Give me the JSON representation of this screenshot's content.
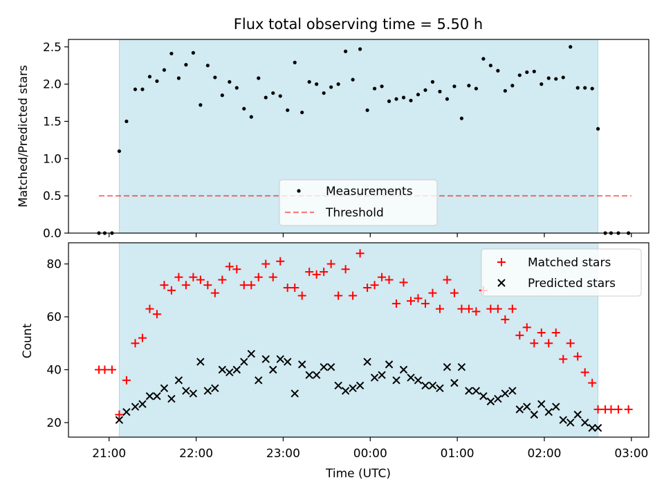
{
  "title": "Flux total observing time = 5.50 h",
  "colors": {
    "band": "#add8e6",
    "threshold": "#ff0000",
    "matched": "#ff0000",
    "predicted": "#000000",
    "measurement": "#000000"
  },
  "chart_data": [
    {
      "type": "scatter",
      "panel": "top",
      "ylabel": "Matched/Predicted stars",
      "ylim": [
        0,
        2.6
      ],
      "yticks": [
        0.0,
        0.5,
        1.0,
        1.5,
        2.0,
        2.5
      ],
      "ytick_labels": [
        "0.0",
        "0.5",
        "1.0",
        "1.5",
        "2.0",
        "2.5"
      ],
      "threshold": {
        "value": 0.5,
        "x_start": "20:53",
        "x_end": "03:00"
      },
      "observing_window": {
        "start": "21:07",
        "end": "02:37"
      },
      "legend": {
        "position": "lower-center",
        "entries": [
          "Measurements",
          "Threshold"
        ]
      },
      "series": [
        {
          "name": "Measurements",
          "points": [
            [
              "20:53",
              0.0
            ],
            [
              "20:57",
              0.0
            ],
            [
              "21:02",
              0.0
            ],
            [
              "21:07",
              1.1
            ],
            [
              "21:12",
              1.5
            ],
            [
              "21:18",
              1.93
            ],
            [
              "21:23",
              1.93
            ],
            [
              "21:28",
              2.1
            ],
            [
              "21:33",
              2.04
            ],
            [
              "21:38",
              2.19
            ],
            [
              "21:43",
              2.41
            ],
            [
              "21:48",
              2.08
            ],
            [
              "21:53",
              2.26
            ],
            [
              "21:58",
              2.42
            ],
            [
              "22:03",
              1.72
            ],
            [
              "22:08",
              2.25
            ],
            [
              "22:13",
              2.09
            ],
            [
              "22:18",
              1.85
            ],
            [
              "22:23",
              2.03
            ],
            [
              "22:28",
              1.95
            ],
            [
              "22:33",
              1.67
            ],
            [
              "22:38",
              1.56
            ],
            [
              "22:43",
              2.08
            ],
            [
              "22:48",
              1.82
            ],
            [
              "22:53",
              1.88
            ],
            [
              "22:58",
              1.84
            ],
            [
              "23:03",
              1.65
            ],
            [
              "23:08",
              2.29
            ],
            [
              "23:13",
              1.62
            ],
            [
              "23:18",
              2.03
            ],
            [
              "23:23",
              2.0
            ],
            [
              "23:28",
              1.88
            ],
            [
              "23:33",
              1.96
            ],
            [
              "23:38",
              2.0
            ],
            [
              "23:43",
              2.44
            ],
            [
              "23:48",
              2.06
            ],
            [
              "23:53",
              2.47
            ],
            [
              "23:58",
              1.65
            ],
            [
              "00:03",
              1.94
            ],
            [
              "00:08",
              1.97
            ],
            [
              "00:13",
              1.77
            ],
            [
              "00:18",
              1.8
            ],
            [
              "00:23",
              1.82
            ],
            [
              "00:28",
              1.78
            ],
            [
              "00:33",
              1.86
            ],
            [
              "00:38",
              1.92
            ],
            [
              "00:43",
              2.03
            ],
            [
              "00:48",
              1.9
            ],
            [
              "00:53",
              1.8
            ],
            [
              "00:58",
              1.97
            ],
            [
              "01:03",
              1.54
            ],
            [
              "01:08",
              1.98
            ],
            [
              "01:13",
              1.94
            ],
            [
              "01:18",
              2.34
            ],
            [
              "01:23",
              2.25
            ],
            [
              "01:28",
              2.18
            ],
            [
              "01:33",
              1.91
            ],
            [
              "01:38",
              1.98
            ],
            [
              "01:43",
              2.12
            ],
            [
              "01:48",
              2.16
            ],
            [
              "01:53",
              2.17
            ],
            [
              "01:58",
              2.0
            ],
            [
              "02:03",
              2.08
            ],
            [
              "02:08",
              2.07
            ],
            [
              "02:13",
              2.09
            ],
            [
              "02:18",
              2.5
            ],
            [
              "02:23",
              1.95
            ],
            [
              "02:28",
              1.95
            ],
            [
              "02:33",
              1.94
            ],
            [
              "02:37",
              1.4
            ],
            [
              "02:42",
              0.0
            ],
            [
              "02:46",
              0.0
            ],
            [
              "02:51",
              0.0
            ],
            [
              "02:58",
              0.0
            ]
          ]
        }
      ]
    },
    {
      "type": "scatter",
      "panel": "bottom",
      "xlabel": "Time (UTC)",
      "ylabel": "Count",
      "ylim": [
        14.5,
        88
      ],
      "yticks": [
        20,
        40,
        60,
        80
      ],
      "ytick_labels": [
        "20",
        "40",
        "60",
        "80"
      ],
      "xlim": [
        "20:32",
        "03:12"
      ],
      "xticks": [
        "21:00",
        "22:00",
        "23:00",
        "00:00",
        "01:00",
        "02:00",
        "03:00"
      ],
      "xtick_labels": [
        "21:00",
        "22:00",
        "23:00",
        "00:00",
        "01:00",
        "02:00",
        "03:00"
      ],
      "observing_window": {
        "start": "21:07",
        "end": "02:37"
      },
      "legend": {
        "position": "top-right",
        "entries": [
          "Matched stars",
          "Predicted stars"
        ]
      },
      "series": [
        {
          "name": "Matched stars",
          "marker": "+",
          "points": [
            [
              "20:53",
              40
            ],
            [
              "20:57",
              40
            ],
            [
              "21:02",
              40
            ],
            [
              "21:07",
              23
            ],
            [
              "21:12",
              36
            ],
            [
              "21:18",
              50
            ],
            [
              "21:23",
              52
            ],
            [
              "21:28",
              63
            ],
            [
              "21:33",
              61
            ],
            [
              "21:38",
              72
            ],
            [
              "21:43",
              70
            ],
            [
              "21:48",
              75
            ],
            [
              "21:53",
              72
            ],
            [
              "21:58",
              75
            ],
            [
              "22:03",
              74
            ],
            [
              "22:08",
              72
            ],
            [
              "22:13",
              69
            ],
            [
              "22:18",
              74
            ],
            [
              "22:23",
              79
            ],
            [
              "22:28",
              78
            ],
            [
              "22:33",
              72
            ],
            [
              "22:38",
              72
            ],
            [
              "22:43",
              75
            ],
            [
              "22:48",
              80
            ],
            [
              "22:53",
              75
            ],
            [
              "22:58",
              81
            ],
            [
              "23:03",
              71
            ],
            [
              "23:08",
              71
            ],
            [
              "23:13",
              68
            ],
            [
              "23:18",
              77
            ],
            [
              "23:23",
              76
            ],
            [
              "23:28",
              77
            ],
            [
              "23:33",
              80
            ],
            [
              "23:38",
              68
            ],
            [
              "23:43",
              78
            ],
            [
              "23:48",
              68
            ],
            [
              "23:53",
              84
            ],
            [
              "23:58",
              71
            ],
            [
              "00:03",
              72
            ],
            [
              "00:08",
              75
            ],
            [
              "00:13",
              74
            ],
            [
              "00:18",
              65
            ],
            [
              "00:23",
              73
            ],
            [
              "00:28",
              66
            ],
            [
              "00:33",
              67
            ],
            [
              "00:38",
              65
            ],
            [
              "00:43",
              69
            ],
            [
              "00:48",
              63
            ],
            [
              "00:53",
              74
            ],
            [
              "00:58",
              69
            ],
            [
              "01:03",
              63
            ],
            [
              "01:08",
              63
            ],
            [
              "01:13",
              62
            ],
            [
              "01:18",
              70
            ],
            [
              "01:23",
              63
            ],
            [
              "01:28",
              63
            ],
            [
              "01:33",
              59
            ],
            [
              "01:38",
              63
            ],
            [
              "01:43",
              53
            ],
            [
              "01:48",
              56
            ],
            [
              "01:53",
              50
            ],
            [
              "01:58",
              54
            ],
            [
              "02:03",
              50
            ],
            [
              "02:08",
              54
            ],
            [
              "02:13",
              44
            ],
            [
              "02:18",
              50
            ],
            [
              "02:23",
              45
            ],
            [
              "02:28",
              39
            ],
            [
              "02:33",
              35
            ],
            [
              "02:37",
              25
            ],
            [
              "02:42",
              25
            ],
            [
              "02:46",
              25
            ],
            [
              "02:51",
              25
            ],
            [
              "02:58",
              25
            ]
          ]
        },
        {
          "name": "Predicted stars",
          "marker": "x",
          "points": [
            [
              "21:07",
              21
            ],
            [
              "21:12",
              24
            ],
            [
              "21:18",
              26
            ],
            [
              "21:23",
              27
            ],
            [
              "21:28",
              30
            ],
            [
              "21:33",
              30
            ],
            [
              "21:38",
              33
            ],
            [
              "21:43",
              29
            ],
            [
              "21:48",
              36
            ],
            [
              "21:53",
              32
            ],
            [
              "21:58",
              31
            ],
            [
              "22:03",
              43
            ],
            [
              "22:08",
              32
            ],
            [
              "22:13",
              33
            ],
            [
              "22:18",
              40
            ],
            [
              "22:23",
              39
            ],
            [
              "22:28",
              40
            ],
            [
              "22:33",
              43
            ],
            [
              "22:38",
              46
            ],
            [
              "22:43",
              36
            ],
            [
              "22:48",
              44
            ],
            [
              "22:53",
              40
            ],
            [
              "22:58",
              44
            ],
            [
              "23:03",
              43
            ],
            [
              "23:08",
              31
            ],
            [
              "23:13",
              42
            ],
            [
              "23:18",
              38
            ],
            [
              "23:23",
              38
            ],
            [
              "23:28",
              41
            ],
            [
              "23:33",
              41
            ],
            [
              "23:38",
              34
            ],
            [
              "23:43",
              32
            ],
            [
              "23:48",
              33
            ],
            [
              "23:53",
              34
            ],
            [
              "23:58",
              43
            ],
            [
              "00:03",
              37
            ],
            [
              "00:08",
              38
            ],
            [
              "00:13",
              42
            ],
            [
              "00:18",
              36
            ],
            [
              "00:23",
              40
            ],
            [
              "00:28",
              37
            ],
            [
              "00:33",
              36
            ],
            [
              "00:38",
              34
            ],
            [
              "00:43",
              34
            ],
            [
              "00:48",
              33
            ],
            [
              "00:53",
              41
            ],
            [
              "00:58",
              35
            ],
            [
              "01:03",
              41
            ],
            [
              "01:08",
              32
            ],
            [
              "01:13",
              32
            ],
            [
              "01:18",
              30
            ],
            [
              "01:23",
              28
            ],
            [
              "01:28",
              29
            ],
            [
              "01:33",
              31
            ],
            [
              "01:38",
              32
            ],
            [
              "01:43",
              25
            ],
            [
              "01:48",
              26
            ],
            [
              "01:53",
              23
            ],
            [
              "01:58",
              27
            ],
            [
              "02:03",
              24
            ],
            [
              "02:08",
              26
            ],
            [
              "02:13",
              21
            ],
            [
              "02:18",
              20
            ],
            [
              "02:23",
              23
            ],
            [
              "02:28",
              20
            ],
            [
              "02:33",
              18
            ],
            [
              "02:37",
              18
            ]
          ]
        }
      ]
    }
  ]
}
